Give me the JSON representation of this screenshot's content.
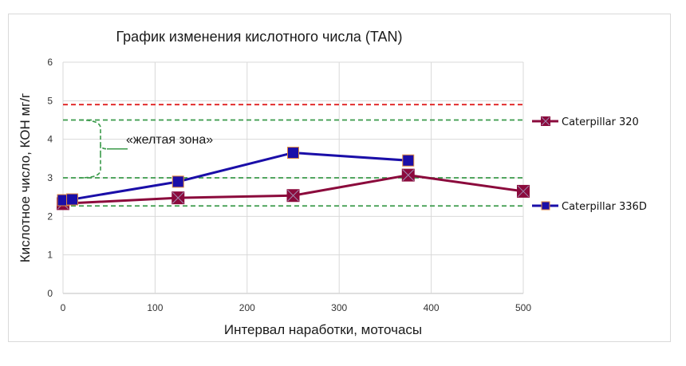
{
  "chart_data": {
    "type": "line",
    "title": "График изменения кислотного числа (TAN)",
    "xlabel": "Интервал наработки, моточасы",
    "ylabel": "Кислотное число, КОН мг/г",
    "xlim": [
      0,
      500
    ],
    "ylim": [
      0,
      6
    ],
    "x_ticks": [
      0,
      100,
      200,
      300,
      400,
      500
    ],
    "y_ticks": [
      0,
      1,
      2,
      3,
      4,
      5,
      6
    ],
    "grid": true,
    "legend_position": "right",
    "series": [
      {
        "name": "Caterpillar 320",
        "color": "#8b0a3c",
        "marker": "square-x",
        "x": [
          0,
          125,
          250,
          375,
          500
        ],
        "y": [
          2.33,
          2.48,
          2.54,
          3.07,
          2.65
        ]
      },
      {
        "name": "Caterpillar 336D",
        "color": "#1a0ea8",
        "marker": "square",
        "x": [
          0,
          10,
          125,
          250,
          375
        ],
        "y": [
          2.42,
          2.44,
          2.9,
          3.65,
          3.45
        ]
      }
    ],
    "reference_lines": [
      {
        "y": 4.9,
        "color": "#e02020",
        "style": "dashed"
      },
      {
        "y": 4.5,
        "color": "#3a9a4a",
        "style": "dashed"
      },
      {
        "y": 3.0,
        "color": "#3a9a4a",
        "style": "dashed"
      },
      {
        "y": 2.27,
        "color": "#3a9a4a",
        "style": "dashed"
      }
    ],
    "annotations": [
      {
        "text": "«желтая зона»",
        "bracket_y_range": [
          3.0,
          4.5
        ]
      }
    ]
  }
}
